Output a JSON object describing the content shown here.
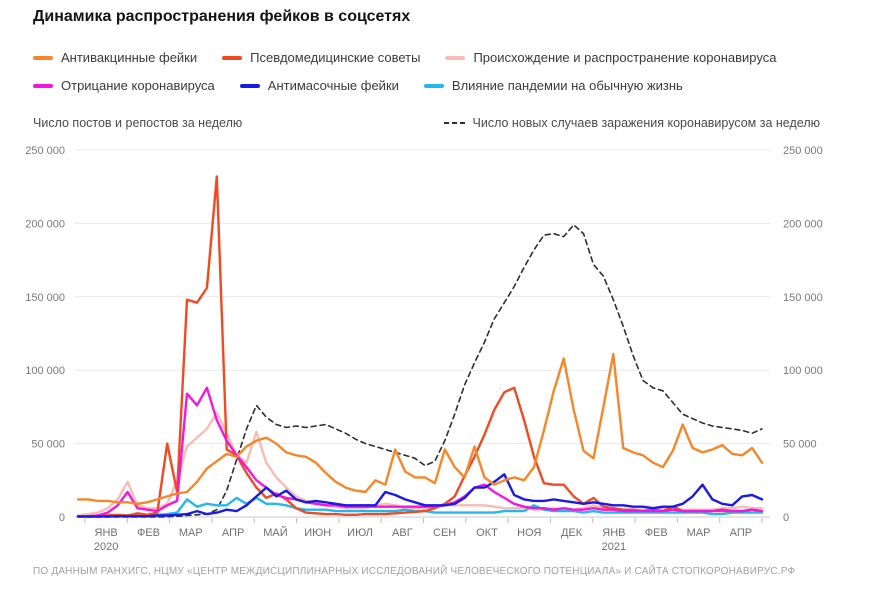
{
  "title": "Динамика распространения фейков в соцсетях",
  "axis_captions": {
    "left": "Число постов и репостов за неделю",
    "right": "Число новых случаев заражения коронавирусом за неделю"
  },
  "footer": "ПО ДАННЫМ РАНХИГС, НЦМУ «ЦЕНТР МЕЖДИСЦИПЛИНАРНЫХ ИССЛЕДОВАНИЙ ЧЕЛОВЕЧЕСКОГО ПОТЕНЦИАЛА» И САЙТА СТОПКОРОНАВИРУС.РФ",
  "colors": {
    "grid": "#e9e9e9",
    "axis_line": "#c9c9c9",
    "tick": "#bdbdbd",
    "tick_text": "#7a7a7a",
    "month_text": "#6f6f6f"
  },
  "chart_data": {
    "type": "line",
    "title": "Динамика распространения фейков в соцсетях",
    "grid": "horizontal",
    "y_axis": {
      "min": 0,
      "max": 250000,
      "tick_step": 50000,
      "tick_labels": [
        "0",
        "50 000",
        "100 000",
        "150 000",
        "200 000",
        "250 000"
      ],
      "dual": true
    },
    "x_axis": {
      "unit": "week",
      "months": [
        {
          "label": "ЯНВ",
          "year": "2020"
        },
        {
          "label": "ФЕВ"
        },
        {
          "label": "МАР"
        },
        {
          "label": "АПР"
        },
        {
          "label": "МАЙ"
        },
        {
          "label": "ИЮН"
        },
        {
          "label": "ИЮЛ"
        },
        {
          "label": "АВГ"
        },
        {
          "label": "СЕН"
        },
        {
          "label": "ОКТ"
        },
        {
          "label": "НОЯ"
        },
        {
          "label": "ДЕК"
        },
        {
          "label": "ЯНВ",
          "year": "2021"
        },
        {
          "label": "ФЕВ"
        },
        {
          "label": "МАР"
        },
        {
          "label": "АПР"
        }
      ]
    },
    "draw_order": [
      6,
      2,
      5,
      1,
      3,
      4,
      0
    ],
    "series": [
      {
        "name": "Антивакцинные фейки",
        "slug": "antivaccine-fakes",
        "color": "#f5872b",
        "dashed": false,
        "values": [
          12000,
          12000,
          11000,
          11000,
          10000,
          10000,
          9000,
          10000,
          12000,
          14000,
          16000,
          17000,
          24000,
          33000,
          38000,
          43000,
          41000,
          48000,
          52000,
          54000,
          50000,
          44000,
          42000,
          41000,
          37000,
          30000,
          24000,
          20000,
          18000,
          17000,
          25000,
          22000,
          46000,
          31000,
          27000,
          27000,
          23000,
          46000,
          34000,
          27000,
          48000,
          27000,
          22000,
          25000,
          27000,
          25000,
          34000,
          59000,
          86000,
          108000,
          73000,
          45000,
          40000,
          75000,
          111000,
          47000,
          44000,
          42000,
          37000,
          34000,
          45000,
          63000,
          47000,
          44000,
          46000,
          49000,
          43000,
          42000,
          47000,
          37000
        ]
      },
      {
        "name": "Псевдомедицинские советы",
        "slug": "pseudo-medical-advice",
        "color": "#f04a23",
        "dashed": false,
        "values": [
          500,
          500,
          500,
          1000,
          1500,
          1000,
          2500,
          1500,
          3000,
          50000,
          17000,
          148000,
          146000,
          156000,
          232000,
          46000,
          42000,
          30000,
          20000,
          13000,
          16000,
          12000,
          6000,
          3000,
          2500,
          2000,
          2000,
          1500,
          1500,
          2000,
          2000,
          2000,
          2500,
          3000,
          3500,
          4000,
          6000,
          9000,
          14000,
          28000,
          41000,
          56000,
          73000,
          85000,
          88000,
          66000,
          41000,
          23000,
          22000,
          22000,
          14000,
          9000,
          13000,
          7000,
          6000,
          5000,
          5000,
          4000,
          5000,
          4000,
          7000,
          4000,
          4000,
          4000,
          4000,
          4000,
          4000,
          4000,
          5000,
          4000
        ]
      },
      {
        "name": "Происхождение и распространение коронавируса",
        "slug": "covid-origin-and-spread",
        "color": "#f7bcb4",
        "dashed": false,
        "values": [
          1000,
          2000,
          3000,
          6000,
          12000,
          24000,
          8000,
          6000,
          6000,
          9000,
          25000,
          48000,
          54000,
          60000,
          71000,
          57000,
          42000,
          37000,
          58000,
          37000,
          27000,
          20000,
          14000,
          11000,
          10000,
          8000,
          7000,
          6000,
          6000,
          6000,
          8000,
          9000,
          8000,
          6000,
          6000,
          6000,
          7000,
          8000,
          8000,
          8000,
          8000,
          8000,
          7000,
          6000,
          6000,
          6000,
          5000,
          5000,
          6000,
          5000,
          5000,
          6000,
          8000,
          6000,
          5000,
          5000,
          5000,
          5000,
          5000,
          6000,
          7000,
          5000,
          5000,
          5000,
          5000,
          6000,
          6000,
          7000,
          6000,
          6000
        ]
      },
      {
        "name": "Отрицание коронавируса",
        "slug": "covid-denial",
        "color": "#f316dc",
        "dashed": false,
        "values": [
          500,
          500,
          1000,
          3000,
          8000,
          17000,
          6000,
          5000,
          4000,
          8000,
          11000,
          84000,
          76000,
          88000,
          66000,
          52000,
          42000,
          34000,
          25000,
          20000,
          15000,
          13000,
          12000,
          10000,
          9000,
          8000,
          8000,
          7000,
          7000,
          7000,
          7000,
          7000,
          7000,
          7000,
          7000,
          7000,
          7000,
          8000,
          10000,
          14000,
          20000,
          22000,
          17000,
          13000,
          9000,
          7000,
          6000,
          6000,
          5000,
          6000,
          5000,
          5000,
          6000,
          5000,
          5000,
          4000,
          4000,
          4000,
          4000,
          4000,
          5000,
          4000,
          4000,
          4000,
          4000,
          5000,
          4000,
          4000,
          5000,
          4000
        ]
      },
      {
        "name": "Антимасочные фейки",
        "slug": "anti-mask-fakes",
        "color": "#1a1ae8",
        "dashed": false,
        "values": [
          300,
          300,
          300,
          400,
          500,
          500,
          500,
          500,
          1000,
          1000,
          1500,
          2000,
          4000,
          2000,
          3000,
          5000,
          4000,
          8000,
          14000,
          20000,
          14000,
          18000,
          12000,
          10000,
          11000,
          10000,
          9000,
          8000,
          8000,
          8000,
          8000,
          17000,
          15000,
          12000,
          10000,
          8000,
          8000,
          8000,
          9000,
          13000,
          20000,
          20000,
          24000,
          29000,
          15000,
          12000,
          11000,
          11000,
          12000,
          11000,
          10000,
          9000,
          10000,
          9000,
          8000,
          8000,
          7000,
          7000,
          6000,
          7000,
          7000,
          9000,
          14000,
          22000,
          12000,
          9000,
          8000,
          14000,
          15000,
          12000
        ]
      },
      {
        "name": "Влияние пандемии на обычную жизнь",
        "slug": "pandemic-impact-on-daily-life",
        "color": "#25b7ea",
        "dashed": false,
        "values": [
          500,
          500,
          500,
          1000,
          1000,
          1000,
          1000,
          1000,
          1500,
          2000,
          3000,
          12000,
          7000,
          9000,
          8000,
          8000,
          13000,
          9000,
          13000,
          9000,
          9000,
          8000,
          6000,
          5000,
          5000,
          5000,
          4000,
          4000,
          4000,
          4000,
          4000,
          4000,
          4000,
          5000,
          4000,
          4000,
          3000,
          3000,
          3000,
          3000,
          3000,
          3000,
          3000,
          4000,
          4000,
          4000,
          8000,
          5000,
          4000,
          4000,
          4000,
          3000,
          4000,
          3000,
          3000,
          3000,
          3000,
          3000,
          3000,
          3000,
          3000,
          3000,
          3000,
          3000,
          2000,
          2000,
          3000,
          3000,
          3000,
          3000
        ]
      },
      {
        "name": "Число новых случаев заражения коронавирусом за неделю",
        "slug": "new-covid-cases",
        "color": "#2e2e2e",
        "dashed": true,
        "values": [
          0,
          0,
          0,
          0,
          0,
          0,
          0,
          0,
          0,
          200,
          500,
          1000,
          1500,
          2000,
          5000,
          18000,
          39000,
          60000,
          76000,
          68000,
          63000,
          61000,
          62000,
          61000,
          62000,
          63000,
          60000,
          57000,
          53000,
          50000,
          48000,
          46000,
          44000,
          42000,
          40000,
          35000,
          38000,
          52000,
          70000,
          90000,
          105000,
          119000,
          135000,
          146000,
          157000,
          170000,
          182000,
          192000,
          193000,
          191000,
          199000,
          193000,
          172000,
          164000,
          148000,
          130000,
          110000,
          93000,
          88000,
          86000,
          78000,
          70000,
          67000,
          64000,
          62000,
          61000,
          60000,
          59000,
          57000,
          60000
        ]
      }
    ]
  }
}
